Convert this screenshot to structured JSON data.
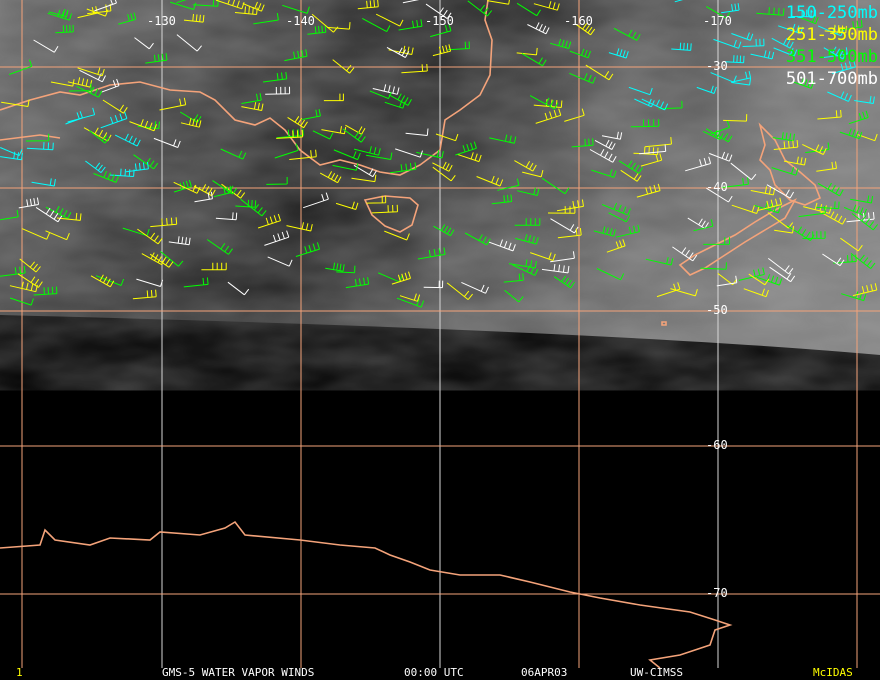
{
  "colors": {
    "grid": "#f4a37a",
    "coast": "#f4a37a",
    "level1": "#00ffff",
    "level2": "#ffff00",
    "level3": "#00ff00",
    "level4": "#ffffff",
    "mcidas": "#ffff00"
  },
  "legend": [
    {
      "label": "150-250mb",
      "color": "#00ffff"
    },
    {
      "label": "251-350mb",
      "color": "#ffff00"
    },
    {
      "label": "351-500mb",
      "color": "#00ff00"
    },
    {
      "label": "501-700mb",
      "color": "#ffffff"
    }
  ],
  "longitude_labels": [
    "-130",
    "-140",
    "-150",
    "-160",
    "-170"
  ],
  "latitude_labels": [
    "-30",
    "-40",
    "-50",
    "-60",
    "-70"
  ],
  "footer": {
    "frame": "1",
    "title": "GMS-5 WATER VAPOR WINDS",
    "time": "00:00 UTC",
    "date": "06APR03",
    "source": "UW-CIMSS",
    "brand": "McIDAS"
  }
}
